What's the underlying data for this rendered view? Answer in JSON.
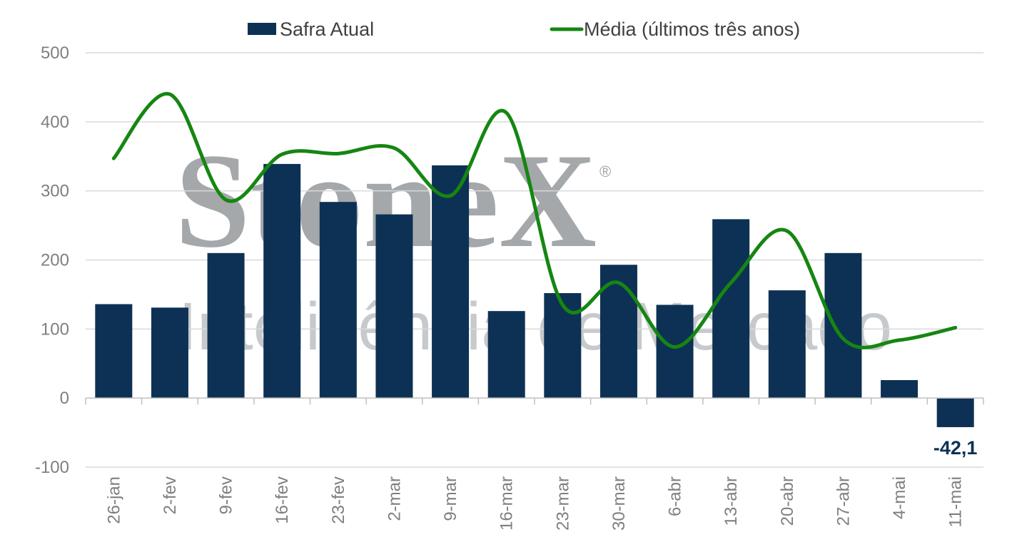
{
  "colors": {
    "bar": "#0d3154",
    "line": "#168612",
    "grid": "#d9d9d9",
    "axis": "#bfbfbf",
    "watermark": "#9b9fa3"
  },
  "watermark": {
    "brand": "StoneX",
    "registered": "®",
    "tagline": "Inteligência de Mercado"
  },
  "chart_data": {
    "type": "bar",
    "categories": [
      "26-jan",
      "2-fev",
      "9-fev",
      "16-fev",
      "23-fev",
      "2-mar",
      "9-mar",
      "16-mar",
      "23-mar",
      "30-mar",
      "6-abr",
      "13-abr",
      "20-abr",
      "27-abr",
      "4-mai",
      "11-mai"
    ],
    "series": [
      {
        "name": "Safra Atual",
        "type": "bar",
        "values": [
          136,
          131,
          210,
          339,
          284,
          266,
          337,
          126,
          152,
          193,
          135,
          259,
          156,
          210,
          26,
          -42.1
        ]
      },
      {
        "name": "Média (últimos três anos)",
        "type": "line",
        "values": [
          347,
          440,
          287,
          353,
          354,
          362,
          293,
          413,
          135,
          167,
          74,
          167,
          242,
          86,
          84,
          102
        ]
      }
    ],
    "yticks": [
      "500",
      "400",
      "300",
      "200",
      "100",
      "0",
      "-100"
    ],
    "ylim": [
      -100,
      500
    ],
    "legend_position": "top",
    "grid": true,
    "annotations": [
      {
        "category": "11-mai",
        "text": "-42,1"
      }
    ]
  }
}
